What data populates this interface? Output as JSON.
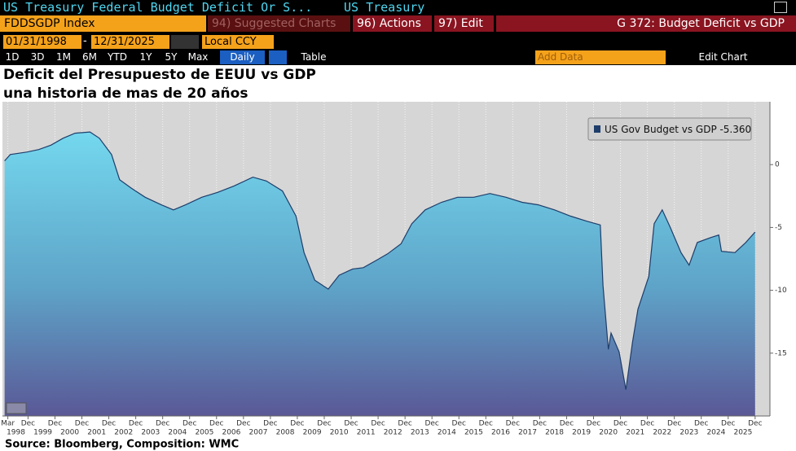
{
  "header": {
    "title": "US Treasury Federal Budget Deficit Or S...",
    "subtitle": "US Treasury"
  },
  "command_bar": {
    "ticker": "FDDSGDP Index",
    "suggested": "94) Suggested Charts",
    "actions": "96) Actions",
    "edit": "97) Edit",
    "chart_name": "G 372: Budget Deficit vs GDP"
  },
  "controls": {
    "start_date": "01/31/1998",
    "date_separator": "-",
    "end_date": "12/31/2025",
    "currency": "Local CCY",
    "periods": [
      "1D",
      "3D",
      "1M",
      "6M",
      "YTD",
      "1Y",
      "5Y",
      "Max"
    ],
    "frequency": "Daily",
    "table": "Table",
    "add_data": "Add Data",
    "edit_chart": "Edit Chart"
  },
  "chart_data": {
    "type": "area",
    "title": "Deficit del Presupuesto de EEUU vs GDP",
    "subtitle": "una historia de mas de 20 años",
    "x": [
      1998.08,
      1998.29,
      1998.9,
      1999.35,
      1999.8,
      2000.25,
      2000.7,
      2001.25,
      2001.6,
      2002.05,
      2002.35,
      2002.8,
      2003.3,
      2003.9,
      2004.35,
      2004.8,
      2005.4,
      2006.0,
      2006.6,
      2007.3,
      2007.8,
      2008.4,
      2008.9,
      2009.2,
      2009.6,
      2010.1,
      2010.5,
      2011.0,
      2011.4,
      2011.9,
      2012.3,
      2012.8,
      2013.2,
      2013.7,
      2014.3,
      2014.9,
      2015.5,
      2016.1,
      2016.7,
      2017.3,
      2017.9,
      2018.5,
      2019.1,
      2019.7,
      2020.2,
      2020.3,
      2020.5,
      2020.6,
      2020.9,
      2021.15,
      2021.4,
      2021.6,
      2022.0,
      2022.2,
      2022.5,
      2022.8,
      2023.2,
      2023.5,
      2023.8,
      2024.3,
      2024.6,
      2024.7,
      2025.2,
      2025.6,
      2025.95
    ],
    "series": [
      {
        "name": "US Gov Budget vs GDP",
        "color": "#1e3d6a",
        "values": [
          0.3,
          0.8,
          1.0,
          1.2,
          1.55,
          2.1,
          2.5,
          2.6,
          2.1,
          0.8,
          -1.2,
          -1.9,
          -2.6,
          -3.2,
          -3.6,
          -3.2,
          -2.6,
          -2.2,
          -1.7,
          -1.0,
          -1.3,
          -2.1,
          -4.1,
          -7.0,
          -9.2,
          -9.9,
          -8.8,
          -8.3,
          -8.2,
          -7.6,
          -7.1,
          -6.3,
          -4.7,
          -3.6,
          -3.0,
          -2.6,
          -2.6,
          -2.3,
          -2.6,
          -3.0,
          -3.2,
          -3.6,
          -4.1,
          -4.5,
          -4.8,
          -9.6,
          -14.7,
          -13.4,
          -14.9,
          -17.9,
          -14.1,
          -11.5,
          -8.9,
          -4.7,
          -3.6,
          -5.0,
          -7.0,
          -8.0,
          -6.2,
          -5.8,
          -5.6,
          -6.9,
          -7.0,
          -6.2,
          -5.36
        ]
      }
    ],
    "legend_value": {
      "value": -5.36,
      "label": "-5.360"
    },
    "xlim": [
      1998.0,
      2026.5
    ],
    "ylim": [
      -20,
      5
    ],
    "yticks": [
      -15,
      -10,
      -5,
      0
    ],
    "xticks": [
      {
        "value": 1998.2,
        "label": "Mar"
      },
      {
        "value": 1998.95,
        "label": "Dec"
      },
      {
        "value": 1999.95,
        "label": "Dec"
      },
      {
        "value": 2000.95,
        "label": "Dec"
      },
      {
        "value": 2001.95,
        "label": "Dec"
      },
      {
        "value": 2002.95,
        "label": "Dec"
      },
      {
        "value": 2003.95,
        "label": "Dec"
      },
      {
        "value": 2004.95,
        "label": "Dec"
      },
      {
        "value": 2005.95,
        "label": "Dec"
      },
      {
        "value": 2006.95,
        "label": "Dec"
      },
      {
        "value": 2007.95,
        "label": "Dec"
      },
      {
        "value": 2008.95,
        "label": "Dec"
      },
      {
        "value": 2009.95,
        "label": "Dec"
      },
      {
        "value": 2010.95,
        "label": "Dec"
      },
      {
        "value": 2011.95,
        "label": "Dec"
      },
      {
        "value": 2012.95,
        "label": "Dec"
      },
      {
        "value": 2013.95,
        "label": "Dec"
      },
      {
        "value": 2014.95,
        "label": "Dec"
      },
      {
        "value": 2015.95,
        "label": "Dec"
      },
      {
        "value": 2016.95,
        "label": "Dec"
      },
      {
        "value": 2017.95,
        "label": "Dec"
      },
      {
        "value": 2018.95,
        "label": "Dec"
      },
      {
        "value": 2019.95,
        "label": "Dec"
      },
      {
        "value": 2020.95,
        "label": "Dec"
      },
      {
        "value": 2021.95,
        "label": "Dec"
      },
      {
        "value": 2022.95,
        "label": "Dec"
      },
      {
        "value": 2023.95,
        "label": "Dec"
      },
      {
        "value": 2024.95,
        "label": "Dec"
      },
      {
        "value": 2025.95,
        "label": "Dec"
      }
    ],
    "year_labels": [
      1998,
      1999,
      2000,
      2001,
      2002,
      2003,
      2004,
      2005,
      2006,
      2007,
      2008,
      2009,
      2010,
      2011,
      2012,
      2013,
      2014,
      2015,
      2016,
      2017,
      2018,
      2019,
      2020,
      2021,
      2022,
      2023,
      2024,
      2025
    ],
    "grid": true,
    "legend": "upper right"
  },
  "source": "Source: Bloomberg, Composition: WMC"
}
